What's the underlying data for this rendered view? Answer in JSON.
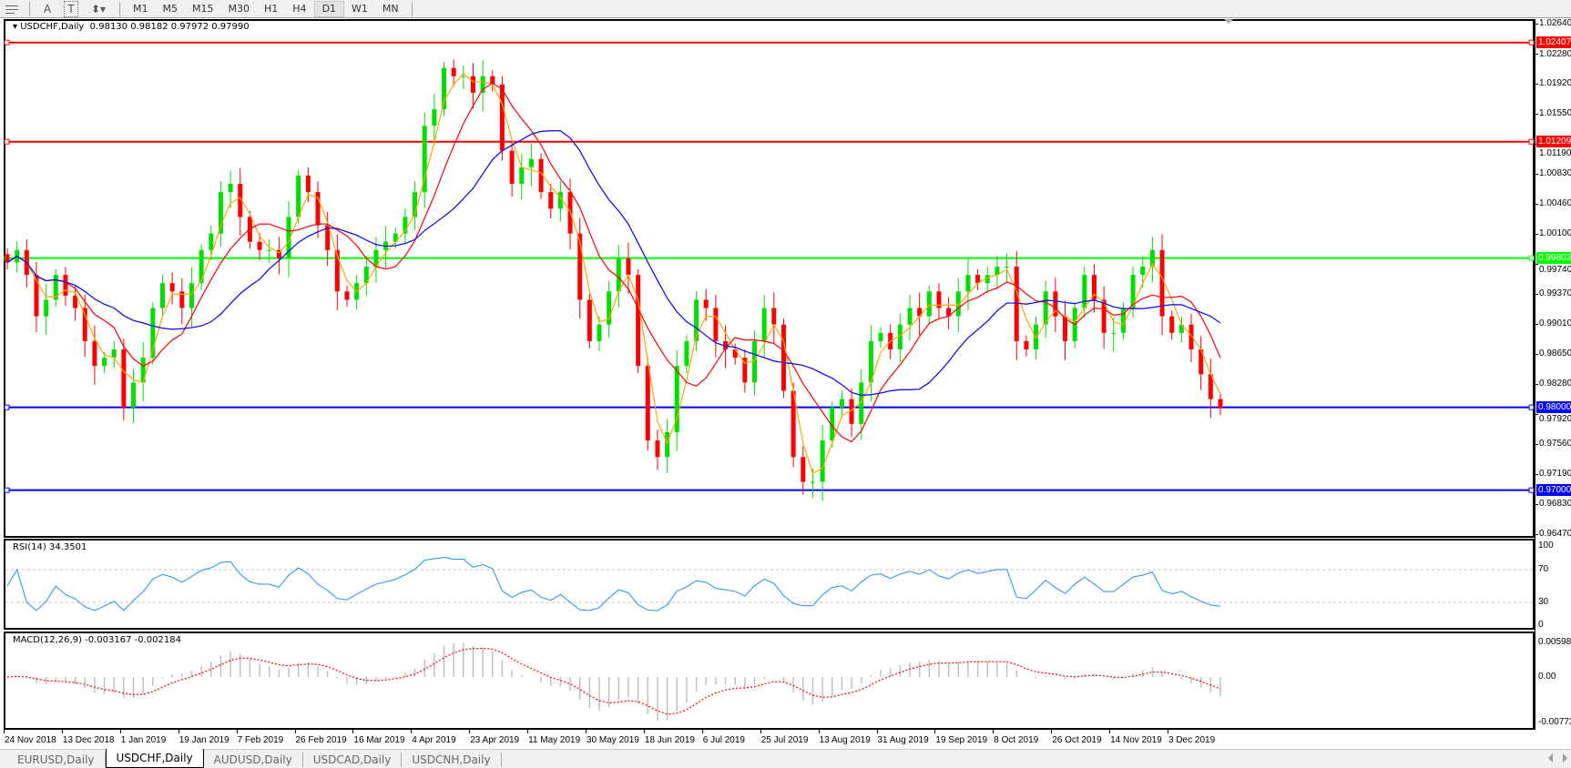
{
  "toolbar": {
    "tools": [
      {
        "icon": "grid-icon"
      },
      {
        "icon": "text-icon",
        "glyph": "A"
      },
      {
        "icon": "text-label-icon",
        "glyph": "T"
      },
      {
        "icon": "arrows-icon",
        "glyph": "⬍▾"
      }
    ],
    "timeframes": [
      "M1",
      "M5",
      "M15",
      "M30",
      "H1",
      "H4",
      "D1",
      "W1",
      "MN"
    ],
    "active_timeframe": "D1"
  },
  "chart": {
    "symbol_label": "USDCHF,Daily",
    "ohlc": "0.98130 0.98182 0.97972 0.97990",
    "bull_color": "#00e000",
    "bear_color": "#ff0000"
  },
  "chart_data": {
    "type": "candlestick",
    "ylim": [
      0.9647,
      1.0264
    ],
    "y_ticks": [
      "1.02640",
      "1.02280",
      "1.01920",
      "1.01550",
      "1.01190",
      "1.00830",
      "1.00460",
      "1.00100",
      "0.99740",
      "0.99370",
      "0.99010",
      "0.98650",
      "0.98280",
      "0.97920",
      "0.97560",
      "0.97190",
      "0.96830",
      "0.96470"
    ],
    "x_ticks": [
      "24 Nov 2018",
      "13 Dec 2018",
      "1 Jan 2019",
      "19 Jan 2019",
      "7 Feb 2019",
      "26 Feb 2019",
      "16 Mar 2019",
      "4 Apr 2019",
      "23 Apr 2019",
      "11 May 2019",
      "30 May 2019",
      "18 Jun 2019",
      "6 Jul 2019",
      "25 Jul 2019",
      "13 Aug 2019",
      "31 Aug 2019",
      "19 Sep 2019",
      "8 Oct 2019",
      "26 Oct 2019",
      "14 Nov 2019",
      "3 Dec 2019"
    ],
    "closes": [
      0.9975,
      0.999,
      0.996,
      0.991,
      0.993,
      0.996,
      0.9935,
      0.992,
      0.988,
      0.985,
      0.986,
      0.987,
      0.98,
      0.983,
      0.986,
      0.992,
      0.995,
      0.994,
      0.992,
      0.995,
      0.999,
      1.001,
      1.006,
      1.007,
      1.003,
      1.0,
      0.999,
      0.999,
      0.998,
      1.003,
      1.008,
      1.006,
      1.002,
      0.999,
      0.994,
      0.993,
      0.995,
      0.997,
      0.999,
      1.0,
      1.001,
      1.003,
      1.006,
      1.014,
      1.016,
      1.021,
      1.02,
      1.02,
      1.018,
      1.02,
      1.019,
      1.011,
      1.007,
      1.009,
      1.01,
      1.006,
      1.004,
      1.006,
      1.001,
      0.993,
      0.988,
      0.99,
      0.994,
      0.998,
      0.996,
      0.985,
      0.976,
      0.974,
      0.977,
      0.985,
      0.988,
      0.993,
      0.992,
      0.988,
      0.987,
      0.986,
      0.983,
      0.988,
      0.992,
      0.99,
      0.982,
      0.974,
      0.971,
      0.971,
      0.976,
      0.98,
      0.981,
      0.978,
      0.983,
      0.988,
      0.989,
      0.987,
      0.99,
      0.992,
      0.991,
      0.994,
      0.992,
      0.991,
      0.994,
      0.996,
      0.995,
      0.996,
      0.997,
      0.997,
      0.988,
      0.987,
      0.99,
      0.994,
      0.991,
      0.988,
      0.992,
      0.996,
      0.993,
      0.989,
      0.989,
      0.992,
      0.996,
      0.997,
      0.999,
      0.991,
      0.989,
      0.99,
      0.987,
      0.984,
      0.981,
      0.9799
    ],
    "moving_averages": [
      {
        "color": "#ffa500"
      },
      {
        "color": "#ff0000"
      },
      {
        "color": "#0000ff"
      }
    ],
    "hlines": [
      {
        "value": 1.02407,
        "label": "1.02407",
        "color": "#ff0000"
      },
      {
        "value": 1.01209,
        "label": "1.01209",
        "color": "#ff0000"
      },
      {
        "value": 0.99803,
        "label": "0.99803",
        "color": "#00ff00"
      },
      {
        "value": 0.98,
        "label": "0.98000",
        "color": "#0000ff"
      },
      {
        "value": 0.97,
        "label": "0.97000",
        "color": "#0000ff"
      }
    ],
    "rsi": {
      "label": "RSI(14) 34.3501",
      "ticks": [
        "100",
        "70",
        "30",
        "0"
      ],
      "levels": [
        70,
        30
      ],
      "color": "#1e90ff",
      "ylim": [
        0,
        100
      ]
    },
    "macd": {
      "label": "MACD(12,26,9) -0.003167 -0.002184",
      "ticks": [
        "0.005986",
        "0.00",
        "-0.00773"
      ],
      "ylim": [
        -0.00773,
        0.005986
      ],
      "histogram_color": "#c0c0c0",
      "signal_color": "#ff0000"
    }
  },
  "tabs": [
    "EURUSD,Daily",
    "USDCHF,Daily",
    "AUDUSD,Daily",
    "USDCAD,Daily",
    "USDCNH,Daily"
  ],
  "active_tab": "USDCHF,Daily"
}
